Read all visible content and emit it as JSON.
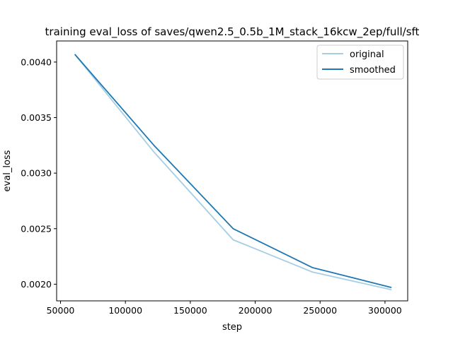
{
  "chart_data": {
    "type": "line",
    "title": "training eval_loss of saves/qwen2.5_0.5b_1M_stack_16kcw_2ep/full/sft",
    "xlabel": "step",
    "ylabel": "eval_loss",
    "xlim": [
      47000,
      317500
    ],
    "ylim": [
      0.00185,
      0.00419
    ],
    "xticks": [
      50000,
      100000,
      150000,
      200000,
      250000,
      300000
    ],
    "xtick_labels": [
      "50000",
      "100000",
      "150000",
      "200000",
      "250000",
      "300000"
    ],
    "yticks": [
      0.002,
      0.0025,
      0.003,
      0.0035,
      0.004
    ],
    "ytick_labels": [
      "0.0020",
      "0.0025",
      "0.0030",
      "0.0035",
      "0.0040"
    ],
    "grid": false,
    "legend_position": "top-right",
    "series": [
      {
        "name": "original",
        "color": "#a6cee3",
        "x": [
          61000,
          122000,
          183000,
          244000,
          305000
        ],
        "y": [
          0.00407,
          0.00319,
          0.0024,
          0.00211,
          0.00195
        ]
      },
      {
        "name": "smoothed",
        "color": "#1f78b4",
        "x": [
          61000,
          122000,
          183000,
          244000,
          305000
        ],
        "y": [
          0.00407,
          0.00325,
          0.0025,
          0.00215,
          0.00197
        ]
      }
    ]
  }
}
